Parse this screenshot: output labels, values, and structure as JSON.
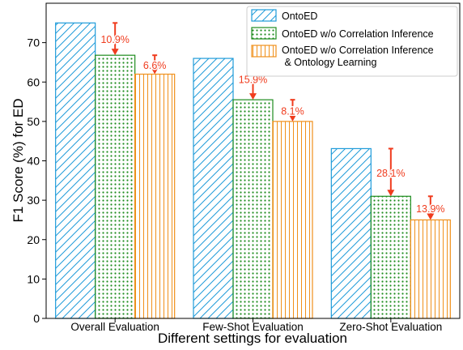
{
  "chart_data": {
    "type": "bar",
    "title": "",
    "xlabel": "Different settings for evaluation",
    "ylabel": "F1 Score (%) for ED",
    "ylim": [
      0,
      80
    ],
    "yticks": [
      0,
      10,
      20,
      30,
      40,
      50,
      60,
      70
    ],
    "grid": false,
    "legend_position": "top-right",
    "categories": [
      "Overall Evaluation",
      "Few-Shot Evaluation",
      "Zero-Shot Evaluation"
    ],
    "series": [
      {
        "name": "OntoED",
        "values": [
          75.0,
          66.0,
          43.1
        ],
        "color": "#1f9bd9",
        "pattern": "diagonal-hatch"
      },
      {
        "name": "OntoED w/o Correlation Inference",
        "values": [
          66.8,
          55.5,
          31.0
        ],
        "color": "#1e8c1e",
        "pattern": "dots"
      },
      {
        "name": "OntoED w/o Correlation Inference\n & Ontology Learning",
        "values": [
          62.0,
          50.0,
          25.0
        ],
        "color": "#f0901a",
        "pattern": "vertical-hatch"
      }
    ],
    "annotations": [
      {
        "text": "10.9%",
        "category": 0,
        "series": 1
      },
      {
        "text": "6.6%",
        "category": 0,
        "series": 2
      },
      {
        "text": "15.9%",
        "category": 1,
        "series": 1
      },
      {
        "text": "8.1%",
        "category": 1,
        "series": 2
      },
      {
        "text": "28.1%",
        "category": 2,
        "series": 1
      },
      {
        "text": "13.9%",
        "category": 2,
        "series": 2
      }
    ],
    "annotation_color": "#f03c1e"
  }
}
